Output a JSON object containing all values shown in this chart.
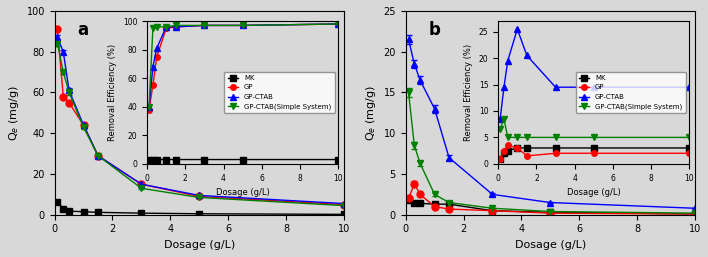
{
  "panel_a": {
    "title": "a",
    "xlabel": "Dosage (g/L)",
    "ylabel": "Q$_e$ (mg/g)",
    "xlim": [
      0,
      10
    ],
    "ylim": [
      0,
      100
    ],
    "series": {
      "MK": {
        "color": "black",
        "marker": "s",
        "markersize": 5,
        "dosage": [
          0.1,
          0.3,
          0.5,
          1.0,
          1.5,
          3.0,
          5.0,
          10.0
        ],
        "Qe": [
          6.5,
          3.0,
          1.8,
          1.5,
          1.2,
          0.8,
          0.5,
          0.2
        ],
        "yerr": [
          0.2,
          0.1,
          0.1,
          0.1,
          0.1,
          0.1,
          0.05,
          0.05
        ]
      },
      "GP": {
        "color": "red",
        "marker": "o",
        "markersize": 5,
        "dosage": [
          0.1,
          0.3,
          0.5,
          1.0,
          1.5,
          3.0,
          5.0,
          10.0
        ],
        "Qe": [
          91.0,
          58.0,
          55.0,
          44.0,
          29.0,
          15.0,
          9.0,
          5.0
        ],
        "yerr": [
          1.0,
          1.0,
          1.0,
          1.0,
          0.5,
          0.5,
          0.3,
          0.2
        ]
      },
      "GP-CTAB": {
        "color": "blue",
        "marker": "^",
        "markersize": 5,
        "dosage": [
          0.1,
          0.3,
          0.5,
          1.0,
          1.5,
          3.0,
          5.0,
          10.0
        ],
        "Qe": [
          87.0,
          80.0,
          61.0,
          44.0,
          29.0,
          15.0,
          9.5,
          5.5
        ],
        "yerr": [
          1.0,
          1.0,
          1.0,
          1.0,
          0.5,
          0.5,
          0.3,
          0.2
        ]
      },
      "GP-CTAB(Simple System)": {
        "color": "green",
        "marker": "v",
        "markersize": 5,
        "dosage": [
          0.1,
          0.3,
          0.5,
          1.0,
          1.5,
          3.0,
          5.0,
          10.0
        ],
        "Qe": [
          84.0,
          70.0,
          60.0,
          43.0,
          29.0,
          13.0,
          8.5,
          4.5
        ],
        "yerr": [
          1.0,
          1.0,
          1.0,
          1.0,
          0.5,
          0.5,
          0.3,
          0.2
        ]
      }
    },
    "inset": {
      "xlabel": "Dosage (g/L)",
      "ylabel": "Removal Efficiency (%)",
      "xlim": [
        0,
        10
      ],
      "ylim": [
        0,
        100
      ],
      "series": {
        "MK": {
          "color": "black",
          "marker": "s",
          "markersize": 4,
          "dosage": [
            0.1,
            0.3,
            0.5,
            1.0,
            1.5,
            3.0,
            5.0,
            10.0
          ],
          "RE": [
            2.5,
            3.0,
            3.0,
            3.0,
            3.0,
            3.0,
            3.0,
            3.0
          ]
        },
        "GP": {
          "color": "red",
          "marker": "o",
          "markersize": 4,
          "dosage": [
            0.1,
            0.3,
            0.5,
            1.0,
            1.5,
            3.0,
            5.0,
            10.0
          ],
          "RE": [
            38.0,
            55.0,
            75.0,
            95.0,
            96.0,
            97.0,
            97.0,
            98.0
          ]
        },
        "GP-CTAB": {
          "color": "blue",
          "marker": "^",
          "markersize": 4,
          "dosage": [
            0.1,
            0.3,
            0.5,
            1.0,
            1.5,
            3.0,
            5.0,
            10.0
          ],
          "RE": [
            40.0,
            68.0,
            81.0,
            96.0,
            96.0,
            97.0,
            97.0,
            98.0
          ]
        },
        "GP-CTAB(Simple System)": {
          "color": "green",
          "marker": "v",
          "markersize": 4,
          "dosage": [
            0.1,
            0.3,
            0.5,
            1.0,
            1.5,
            3.0,
            5.0,
            10.0
          ],
          "RE": [
            40.0,
            95.0,
            96.0,
            96.0,
            97.0,
            97.0,
            97.0,
            98.0
          ]
        }
      }
    }
  },
  "panel_b": {
    "title": "b",
    "xlabel": "Dosage (g/L)",
    "ylabel": "Q$_e$ (mg/g)",
    "xlim": [
      0,
      10
    ],
    "ylim": [
      0,
      25
    ],
    "series": {
      "MK": {
        "color": "black",
        "marker": "s",
        "markersize": 5,
        "dosage": [
          0.1,
          0.3,
          0.5,
          1.0,
          1.5,
          3.0,
          5.0,
          10.0
        ],
        "Qe": [
          1.8,
          1.5,
          1.4,
          1.3,
          1.3,
          0.5,
          0.3,
          0.1
        ],
        "yerr": [
          0.2,
          0.1,
          0.1,
          0.1,
          0.1,
          0.05,
          0.05,
          0.02
        ]
      },
      "GP": {
        "color": "red",
        "marker": "o",
        "markersize": 5,
        "dosage": [
          0.1,
          0.3,
          0.5,
          1.0,
          1.5,
          3.0,
          5.0,
          10.0
        ],
        "Qe": [
          2.0,
          3.8,
          2.5,
          1.0,
          0.7,
          0.5,
          0.2,
          0.1
        ],
        "yerr": [
          0.2,
          0.3,
          0.2,
          0.1,
          0.1,
          0.05,
          0.02,
          0.01
        ]
      },
      "GP-CTAB": {
        "color": "blue",
        "marker": "^",
        "markersize": 5,
        "dosage": [
          0.1,
          0.3,
          0.5,
          1.0,
          1.5,
          3.0,
          5.0,
          10.0
        ],
        "Qe": [
          21.5,
          18.5,
          16.5,
          13.0,
          7.0,
          2.5,
          1.5,
          0.8
        ],
        "yerr": [
          0.5,
          0.5,
          0.5,
          0.5,
          0.3,
          0.2,
          0.1,
          0.05
        ]
      },
      "GP-CTAB(Simple System)": {
        "color": "green",
        "marker": "v",
        "markersize": 5,
        "dosage": [
          0.1,
          0.3,
          0.5,
          1.0,
          1.5,
          3.0,
          5.0,
          10.0
        ],
        "Qe": [
          15.0,
          8.5,
          6.3,
          2.5,
          1.5,
          0.8,
          0.4,
          0.2
        ],
        "yerr": [
          0.5,
          0.4,
          0.3,
          0.2,
          0.1,
          0.05,
          0.03,
          0.02
        ]
      }
    },
    "inset": {
      "xlabel": "Dosage (g/L)",
      "ylabel": "Removal Efficiency (%)",
      "xlim": [
        0,
        10
      ],
      "ylim": [
        0,
        27
      ],
      "series": {
        "MK": {
          "color": "black",
          "marker": "s",
          "markersize": 4,
          "dosage": [
            0.1,
            0.3,
            0.5,
            1.0,
            1.5,
            3.0,
            5.0,
            10.0
          ],
          "RE": [
            1.0,
            2.0,
            2.5,
            3.0,
            3.0,
            3.0,
            3.0,
            3.0
          ]
        },
        "GP": {
          "color": "red",
          "marker": "o",
          "markersize": 4,
          "dosage": [
            0.1,
            0.3,
            0.5,
            1.0,
            1.5,
            3.0,
            5.0,
            10.0
          ],
          "RE": [
            1.0,
            2.5,
            3.5,
            3.0,
            1.5,
            2.0,
            2.0,
            2.0
          ]
        },
        "GP-CTAB": {
          "color": "blue",
          "marker": "^",
          "markersize": 4,
          "dosage": [
            0.1,
            0.3,
            0.5,
            1.0,
            1.5,
            3.0,
            5.0,
            10.0
          ],
          "RE": [
            8.5,
            14.5,
            19.5,
            25.5,
            20.5,
            14.5,
            14.5,
            14.5
          ]
        },
        "GP-CTAB(Simple System)": {
          "color": "green",
          "marker": "v",
          "markersize": 4,
          "dosage": [
            0.1,
            0.3,
            0.5,
            1.0,
            1.5,
            3.0,
            5.0,
            10.0
          ],
          "RE": [
            6.5,
            8.5,
            5.0,
            5.0,
            5.0,
            5.0,
            5.0,
            5.0
          ]
        }
      }
    }
  },
  "legend_labels": [
    "MK",
    "GP",
    "GP-CTAB",
    "GP-CTAB(Simple System)"
  ],
  "legend_colors": [
    "black",
    "red",
    "blue",
    "green"
  ],
  "legend_markers": [
    "s",
    "o",
    "^",
    "v"
  ]
}
